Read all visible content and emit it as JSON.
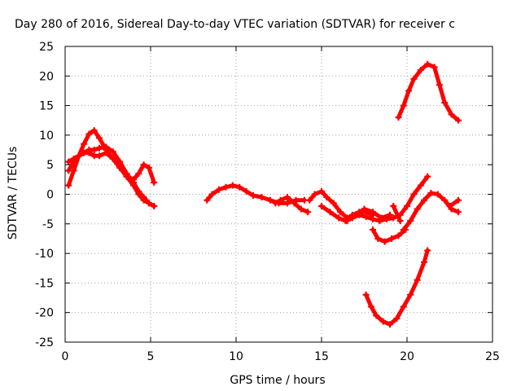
{
  "chart_data": {
    "type": "scatter",
    "title": "Day 280 of 2016, Sidereal Day-to-day VTEC variation (SDTVAR) for receiver c",
    "xlabel": "GPS time / hours",
    "ylabel": "SDTVAR / TECUs",
    "xlim": [
      0,
      25
    ],
    "ylim": [
      -25,
      25
    ],
    "xticks": [
      0,
      5,
      10,
      15,
      20,
      25
    ],
    "yticks": [
      -25,
      -20,
      -15,
      -10,
      -5,
      0,
      5,
      10,
      15,
      20,
      25
    ],
    "grid": true,
    "legend": "none",
    "marker_color": "#ff0000",
    "series": [
      {
        "x": [
          0.2,
          0.5,
          0.8,
          1.1,
          1.4,
          1.7,
          2.0,
          2.4,
          2.8,
          3.2,
          3.6,
          4.0,
          4.3,
          4.6,
          4.9,
          5.2
        ],
        "y": [
          1.5,
          4.0,
          6.5,
          8.5,
          10.2,
          10.8,
          9.5,
          7.5,
          6.0,
          4.5,
          3.0,
          1.5,
          0.0,
          -1.0,
          -1.5,
          -2.0
        ]
      },
      {
        "x": [
          0.2,
          0.5,
          0.8,
          1.1,
          1.4,
          1.7,
          2.0,
          2.4,
          2.8,
          3.2,
          3.6,
          4.0,
          4.3,
          4.6,
          4.9,
          5.2
        ],
        "y": [
          4.0,
          5.5,
          6.5,
          7.0,
          7.5,
          7.5,
          7.8,
          8.0,
          7.2,
          5.5,
          3.5,
          2.0,
          0.5,
          -0.5,
          -1.5,
          -2.0
        ]
      },
      {
        "x": [
          0.2,
          0.5,
          0.8,
          1.1,
          1.4,
          1.7,
          2.0,
          2.4,
          2.8,
          3.2,
          3.6,
          4.0,
          4.3,
          4.6,
          4.9,
          5.2
        ],
        "y": [
          5.5,
          6.0,
          6.5,
          7.0,
          7.0,
          6.5,
          6.5,
          7.0,
          6.0,
          4.5,
          3.0,
          2.5,
          3.5,
          5.0,
          4.5,
          2.0
        ]
      },
      {
        "x": [
          8.3,
          8.6,
          9.0,
          9.4,
          9.8,
          10.2,
          10.6,
          11.0,
          11.5,
          12.0,
          12.5,
          13.0,
          13.5,
          14.0
        ],
        "y": [
          -1.0,
          0.0,
          0.8,
          1.2,
          1.5,
          1.2,
          0.5,
          -0.2,
          -0.5,
          -1.0,
          -1.5,
          -1.5,
          -1.0,
          -1.0
        ]
      },
      {
        "x": [
          12.3,
          12.6,
          13.0,
          13.4,
          13.8,
          14.2
        ],
        "y": [
          -1.5,
          -1.0,
          -0.5,
          -1.5,
          -2.5,
          -3.0
        ]
      },
      {
        "x": [
          14.3,
          14.6,
          15.0,
          15.3,
          15.7,
          16.1,
          16.5,
          17.0,
          17.5,
          18.0,
          18.5,
          19.0
        ],
        "y": [
          -1.0,
          0.0,
          0.5,
          -0.5,
          -1.5,
          -3.0,
          -4.0,
          -3.5,
          -2.5,
          -3.0,
          -4.0,
          -3.5
        ]
      },
      {
        "x": [
          15.0,
          15.5,
          16.0,
          16.4,
          16.8,
          17.2,
          17.6,
          18.0,
          18.4,
          18.8,
          19.2,
          19.6,
          20.0,
          20.4,
          20.8,
          21.2
        ],
        "y": [
          -2.0,
          -3.0,
          -4.0,
          -4.5,
          -4.0,
          -3.5,
          -3.8,
          -4.2,
          -4.5,
          -4.2,
          -4.0,
          -3.5,
          -2.0,
          0.0,
          1.5,
          3.0
        ]
      },
      {
        "x": [
          16.5,
          16.8,
          17.2,
          17.6,
          18.0
        ],
        "y": [
          -4.5,
          -3.5,
          -3.0,
          -3.0,
          -3.5
        ]
      },
      {
        "x": [
          18.0,
          18.3,
          18.7,
          19.1,
          19.5,
          19.9
        ],
        "y": [
          -6.0,
          -7.5,
          -8.0,
          -7.5,
          -7.0,
          -6.0
        ]
      },
      {
        "x": [
          19.2,
          19.6
        ],
        "y": [
          -2.0,
          -4.5
        ]
      },
      {
        "x": [
          19.8,
          20.2,
          20.6,
          21.0,
          21.4,
          21.8,
          22.2,
          22.6,
          23.0
        ],
        "y": [
          -6.0,
          -4.5,
          -2.5,
          -1.0,
          0.2,
          0.0,
          -1.0,
          -2.5,
          -3.0
        ]
      },
      {
        "x": [
          22.5,
          23.0
        ],
        "y": [
          -2.0,
          -1.0
        ]
      },
      {
        "x": [
          17.6,
          17.9,
          18.2,
          18.6,
          19.0,
          19.4,
          19.8,
          20.2,
          20.6,
          21.0,
          21.2
        ],
        "y": [
          -17.0,
          -19.0,
          -20.5,
          -21.5,
          -22.0,
          -21.0,
          -19.0,
          -17.0,
          -14.5,
          -11.5,
          -9.5
        ]
      },
      {
        "x": [
          19.5,
          19.8,
          20.1,
          20.4,
          20.8,
          21.2,
          21.6,
          21.9,
          22.2,
          22.6,
          23.0
        ],
        "y": [
          13.0,
          15.0,
          17.5,
          19.5,
          21.0,
          22.0,
          21.5,
          18.5,
          15.5,
          13.5,
          12.5
        ]
      }
    ]
  }
}
